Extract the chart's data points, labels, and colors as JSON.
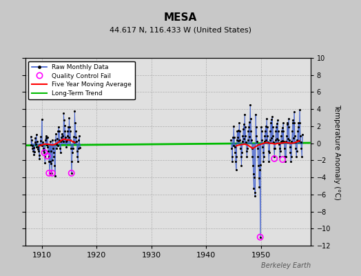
{
  "title": "MESA",
  "subtitle": "44.617 N, 116.433 W (United States)",
  "ylabel": "Temperature Anomaly (°C)",
  "watermark": "Berkeley Earth",
  "xlim": [
    1907,
    1959
  ],
  "ylim": [
    -12,
    10
  ],
  "yticks": [
    -12,
    -10,
    -8,
    -6,
    -4,
    -2,
    0,
    2,
    4,
    6,
    8,
    10
  ],
  "xticks": [
    1910,
    1920,
    1930,
    1940,
    1950
  ],
  "fig_bg_color": "#c8c8c8",
  "plot_bg_color": "#e0e0e0",
  "raw_color": "#3355cc",
  "dot_color": "#000000",
  "qc_color": "#ff00ff",
  "moving_avg_color": "#ff0000",
  "trend_color": "#00bb00",
  "trend_y1": -0.25,
  "trend_y2": 0.05,
  "raw_monthly_period1": [
    [
      1908.0,
      0.8
    ],
    [
      1908.083,
      -0.2
    ],
    [
      1908.167,
      0.4
    ],
    [
      1908.25,
      -0.3
    ],
    [
      1908.333,
      -0.6
    ],
    [
      1908.417,
      -0.9
    ],
    [
      1908.5,
      -0.5
    ],
    [
      1908.583,
      -1.3
    ],
    [
      1908.667,
      -1.0
    ],
    [
      1908.75,
      0.1
    ],
    [
      1908.833,
      0.6
    ],
    [
      1908.917,
      -0.1
    ],
    [
      1909.0,
      1.0
    ],
    [
      1909.083,
      -0.4
    ],
    [
      1909.167,
      0.2
    ],
    [
      1909.25,
      -0.7
    ],
    [
      1909.333,
      -0.4
    ],
    [
      1909.417,
      -0.9
    ],
    [
      1909.5,
      -1.4
    ],
    [
      1909.583,
      -1.8
    ],
    [
      1909.667,
      -0.2
    ],
    [
      1909.75,
      0.3
    ],
    [
      1909.833,
      0.8
    ],
    [
      1909.917,
      -0.2
    ],
    [
      1910.0,
      2.8
    ],
    [
      1910.083,
      -0.3
    ],
    [
      1910.167,
      0.1
    ],
    [
      1910.25,
      -0.6
    ],
    [
      1910.333,
      -0.8
    ],
    [
      1910.417,
      -1.1
    ],
    [
      1910.5,
      -1.6
    ],
    [
      1910.583,
      -2.3
    ],
    [
      1910.667,
      0.4
    ],
    [
      1910.75,
      0.9
    ],
    [
      1910.833,
      0.6
    ],
    [
      1910.917,
      -0.2
    ],
    [
      1911.0,
      0.7
    ],
    [
      1911.083,
      -0.4
    ],
    [
      1911.167,
      -0.9
    ],
    [
      1911.25,
      -1.6
    ],
    [
      1911.333,
      -2.1
    ],
    [
      1911.417,
      -3.5
    ],
    [
      1911.5,
      -2.1
    ],
    [
      1911.583,
      0.2
    ],
    [
      1911.667,
      -0.9
    ],
    [
      1911.75,
      -2.4
    ],
    [
      1911.833,
      -3.5
    ],
    [
      1911.917,
      -2.0
    ],
    [
      1912.0,
      0.4
    ],
    [
      1912.083,
      -0.6
    ],
    [
      1912.167,
      -1.1
    ],
    [
      1912.25,
      -1.6
    ],
    [
      1912.333,
      -2.6
    ],
    [
      1912.417,
      -3.8
    ],
    [
      1912.5,
      0.4
    ],
    [
      1912.583,
      1.1
    ],
    [
      1912.667,
      -0.1
    ],
    [
      1912.75,
      -0.6
    ],
    [
      1912.833,
      0.5
    ],
    [
      1912.917,
      -0.3
    ],
    [
      1913.0,
      1.4
    ],
    [
      1913.083,
      1.9
    ],
    [
      1913.167,
      1.4
    ],
    [
      1913.25,
      0.4
    ],
    [
      1913.333,
      -0.6
    ],
    [
      1913.417,
      -1.1
    ],
    [
      1913.5,
      0.2
    ],
    [
      1913.583,
      0.7
    ],
    [
      1913.667,
      1.1
    ],
    [
      1913.75,
      0.4
    ],
    [
      1913.833,
      0.9
    ],
    [
      1913.917,
      0.2
    ],
    [
      1914.0,
      3.5
    ],
    [
      1914.083,
      2.7
    ],
    [
      1914.167,
      2.1
    ],
    [
      1914.25,
      1.4
    ],
    [
      1914.333,
      0.7
    ],
    [
      1914.417,
      0.2
    ],
    [
      1914.5,
      -0.4
    ],
    [
      1914.583,
      0.4
    ],
    [
      1914.667,
      0.9
    ],
    [
      1914.75,
      1.4
    ],
    [
      1914.833,
      1.9
    ],
    [
      1914.917,
      0.7
    ],
    [
      1915.0,
      3.0
    ],
    [
      1915.083,
      1.9
    ],
    [
      1915.167,
      1.4
    ],
    [
      1915.25,
      0.4
    ],
    [
      1915.333,
      -0.6
    ],
    [
      1915.417,
      -3.5
    ],
    [
      1915.5,
      -2.1
    ],
    [
      1915.583,
      -1.1
    ],
    [
      1915.667,
      -0.6
    ],
    [
      1915.75,
      0.2
    ],
    [
      1915.833,
      0.8
    ],
    [
      1915.917,
      0.1
    ],
    [
      1916.0,
      3.8
    ],
    [
      1916.083,
      2.4
    ],
    [
      1916.167,
      1.4
    ],
    [
      1916.25,
      0.7
    ],
    [
      1916.333,
      0.2
    ],
    [
      1916.417,
      -0.9
    ],
    [
      1916.5,
      -1.6
    ],
    [
      1916.583,
      -2.1
    ],
    [
      1916.667,
      -0.6
    ],
    [
      1916.75,
      0.4
    ],
    [
      1916.833,
      0.9
    ],
    [
      1916.917,
      -0.5
    ]
  ],
  "raw_monthly_period2": [
    [
      1944.5,
      0.4
    ],
    [
      1944.583,
      -0.6
    ],
    [
      1944.667,
      -1.6
    ],
    [
      1944.75,
      -2.1
    ],
    [
      1944.833,
      0.7
    ],
    [
      1944.917,
      -0.3
    ],
    [
      1945.0,
      2.0
    ],
    [
      1945.083,
      0.7
    ],
    [
      1945.167,
      -0.4
    ],
    [
      1945.25,
      -1.1
    ],
    [
      1945.333,
      -2.1
    ],
    [
      1945.417,
      -3.1
    ],
    [
      1945.5,
      -1.6
    ],
    [
      1945.583,
      0.4
    ],
    [
      1945.667,
      1.4
    ],
    [
      1945.75,
      0.7
    ],
    [
      1945.833,
      1.5
    ],
    [
      1945.917,
      0.3
    ],
    [
      1946.0,
      2.4
    ],
    [
      1946.083,
      1.4
    ],
    [
      1946.167,
      0.4
    ],
    [
      1946.25,
      -0.6
    ],
    [
      1946.333,
      -1.6
    ],
    [
      1946.417,
      -2.6
    ],
    [
      1946.5,
      -1.1
    ],
    [
      1946.583,
      0.2
    ],
    [
      1946.667,
      0.9
    ],
    [
      1946.75,
      1.7
    ],
    [
      1946.833,
      2.2
    ],
    [
      1946.917,
      0.5
    ],
    [
      1947.0,
      3.4
    ],
    [
      1947.083,
      1.9
    ],
    [
      1947.167,
      0.9
    ],
    [
      1947.25,
      0.1
    ],
    [
      1947.333,
      -0.9
    ],
    [
      1947.417,
      -1.6
    ],
    [
      1947.5,
      -0.6
    ],
    [
      1947.583,
      0.4
    ],
    [
      1947.667,
      1.4
    ],
    [
      1947.75,
      1.9
    ],
    [
      1947.833,
      2.5
    ],
    [
      1947.917,
      0.8
    ],
    [
      1948.0,
      4.5
    ],
    [
      1948.083,
      2.9
    ],
    [
      1948.167,
      1.4
    ],
    [
      1948.25,
      0.4
    ],
    [
      1948.333,
      -0.6
    ],
    [
      1948.417,
      -1.6
    ],
    [
      1948.5,
      -2.6
    ],
    [
      1948.583,
      -3.6
    ],
    [
      1948.667,
      -5.3
    ],
    [
      1948.75,
      -4.0
    ],
    [
      1948.833,
      -5.8
    ],
    [
      1948.917,
      -6.2
    ],
    [
      1949.0,
      3.4
    ],
    [
      1949.083,
      1.9
    ],
    [
      1949.167,
      0.9
    ],
    [
      1949.25,
      0.2
    ],
    [
      1949.333,
      -0.6
    ],
    [
      1949.417,
      -1.6
    ],
    [
      1949.5,
      -2.6
    ],
    [
      1949.583,
      -4.1
    ],
    [
      1949.667,
      -5.1
    ],
    [
      1949.75,
      -3.1
    ],
    [
      1949.833,
      -11.0
    ],
    [
      1949.917,
      -2.5
    ],
    [
      1950.0,
      1.9
    ],
    [
      1950.083,
      1.4
    ],
    [
      1950.167,
      0.4
    ],
    [
      1950.25,
      -0.4
    ],
    [
      1950.333,
      -1.1
    ],
    [
      1950.417,
      -2.1
    ],
    [
      1950.5,
      -1.6
    ],
    [
      1950.583,
      0.2
    ],
    [
      1950.667,
      0.9
    ],
    [
      1950.75,
      1.4
    ],
    [
      1950.833,
      2.0
    ],
    [
      1950.917,
      0.4
    ],
    [
      1951.0,
      2.9
    ],
    [
      1951.083,
      1.9
    ],
    [
      1951.167,
      0.9
    ],
    [
      1951.25,
      0.1
    ],
    [
      1951.333,
      -0.9
    ],
    [
      1951.417,
      -2.1
    ],
    [
      1951.5,
      -1.1
    ],
    [
      1951.583,
      0.4
    ],
    [
      1951.667,
      1.4
    ],
    [
      1951.75,
      2.4
    ],
    [
      1951.833,
      2.8
    ],
    [
      1951.917,
      0.6
    ],
    [
      1952.0,
      3.1
    ],
    [
      1952.083,
      1.9
    ],
    [
      1952.167,
      0.9
    ],
    [
      1952.25,
      0.1
    ],
    [
      1952.333,
      -0.6
    ],
    [
      1952.417,
      -1.6
    ],
    [
      1952.5,
      -0.6
    ],
    [
      1952.583,
      0.4
    ],
    [
      1952.667,
      1.4
    ],
    [
      1952.75,
      1.9
    ],
    [
      1952.833,
      2.3
    ],
    [
      1952.917,
      0.5
    ],
    [
      1953.0,
      2.7
    ],
    [
      1953.083,
      1.4
    ],
    [
      1953.167,
      0.4
    ],
    [
      1953.25,
      -0.1
    ],
    [
      1953.333,
      -0.6
    ],
    [
      1953.417,
      -1.6
    ],
    [
      1953.5,
      -0.9
    ],
    [
      1953.583,
      0.2
    ],
    [
      1953.667,
      0.9
    ],
    [
      1953.75,
      1.4
    ],
    [
      1953.833,
      1.8
    ],
    [
      1953.917,
      0.3
    ],
    [
      1954.0,
      2.4
    ],
    [
      1954.083,
      1.4
    ],
    [
      1954.167,
      0.2
    ],
    [
      1954.25,
      -0.6
    ],
    [
      1954.333,
      -1.6
    ],
    [
      1954.417,
      -2.1
    ],
    [
      1954.5,
      -1.6
    ],
    [
      1954.583,
      0.2
    ],
    [
      1954.667,
      0.9
    ],
    [
      1954.75,
      2.4
    ],
    [
      1954.833,
      2.2
    ],
    [
      1954.917,
      0.5
    ],
    [
      1955.0,
      2.9
    ],
    [
      1955.083,
      1.9
    ],
    [
      1955.167,
      0.4
    ],
    [
      1955.25,
      -0.4
    ],
    [
      1955.333,
      -1.1
    ],
    [
      1955.417,
      -2.1
    ],
    [
      1955.5,
      -1.6
    ],
    [
      1955.583,
      0.2
    ],
    [
      1955.667,
      1.4
    ],
    [
      1955.75,
      2.4
    ],
    [
      1955.833,
      2.7
    ],
    [
      1955.917,
      0.6
    ],
    [
      1956.0,
      3.7
    ],
    [
      1956.083,
      2.4
    ],
    [
      1956.167,
      0.9
    ],
    [
      1956.25,
      0.1
    ],
    [
      1956.333,
      -0.6
    ],
    [
      1956.417,
      -1.6
    ],
    [
      1956.5,
      -0.9
    ],
    [
      1956.583,
      0.4
    ],
    [
      1956.667,
      1.4
    ],
    [
      1956.75,
      1.9
    ],
    [
      1956.833,
      2.4
    ],
    [
      1956.917,
      0.3
    ],
    [
      1957.0,
      3.9
    ],
    [
      1957.083,
      2.4
    ],
    [
      1957.167,
      0.9
    ],
    [
      1957.25,
      0.1
    ],
    [
      1957.333,
      -0.6
    ],
    [
      1957.417,
      -1.6
    ],
    [
      1957.5,
      1.0
    ]
  ],
  "qc_fail_points_period1": [
    [
      1910.5,
      -1.1
    ],
    [
      1911.0,
      -1.5
    ],
    [
      1911.333,
      -3.5
    ],
    [
      1911.917,
      -3.5
    ],
    [
      1915.417,
      -3.5
    ]
  ],
  "qc_fail_points_period2": [
    [
      1949.833,
      -11.0
    ],
    [
      1952.417,
      -1.8
    ],
    [
      1953.917,
      -1.9
    ]
  ],
  "moving_avg_period1_x": [
    1909.5,
    1910.0,
    1910.5,
    1911.0,
    1911.5,
    1912.0,
    1912.5,
    1913.0,
    1913.5,
    1914.0,
    1914.5,
    1915.0,
    1915.5,
    1916.0
  ],
  "moving_avg_period1_y": [
    -0.3,
    -0.2,
    -0.1,
    -0.1,
    -0.15,
    -0.2,
    -0.1,
    0.1,
    0.3,
    0.5,
    0.4,
    0.4,
    0.25,
    0.1
  ],
  "moving_avg_period2_x": [
    1945.5,
    1946.0,
    1946.5,
    1947.0,
    1947.5,
    1948.0,
    1948.5,
    1949.0,
    1949.5,
    1950.0,
    1950.5,
    1951.0,
    1951.5,
    1952.0,
    1952.5,
    1953.0,
    1953.5,
    1954.0,
    1954.5,
    1955.0,
    1955.5,
    1956.0,
    1956.5,
    1957.0
  ],
  "moving_avg_period2_y": [
    -0.3,
    -0.2,
    -0.15,
    -0.1,
    -0.2,
    -0.4,
    -0.6,
    -0.4,
    -0.2,
    -0.1,
    0.0,
    0.1,
    0.0,
    0.0,
    -0.1,
    0.0,
    0.0,
    0.05,
    0.1,
    0.05,
    0.0,
    0.05,
    0.15,
    0.3
  ]
}
